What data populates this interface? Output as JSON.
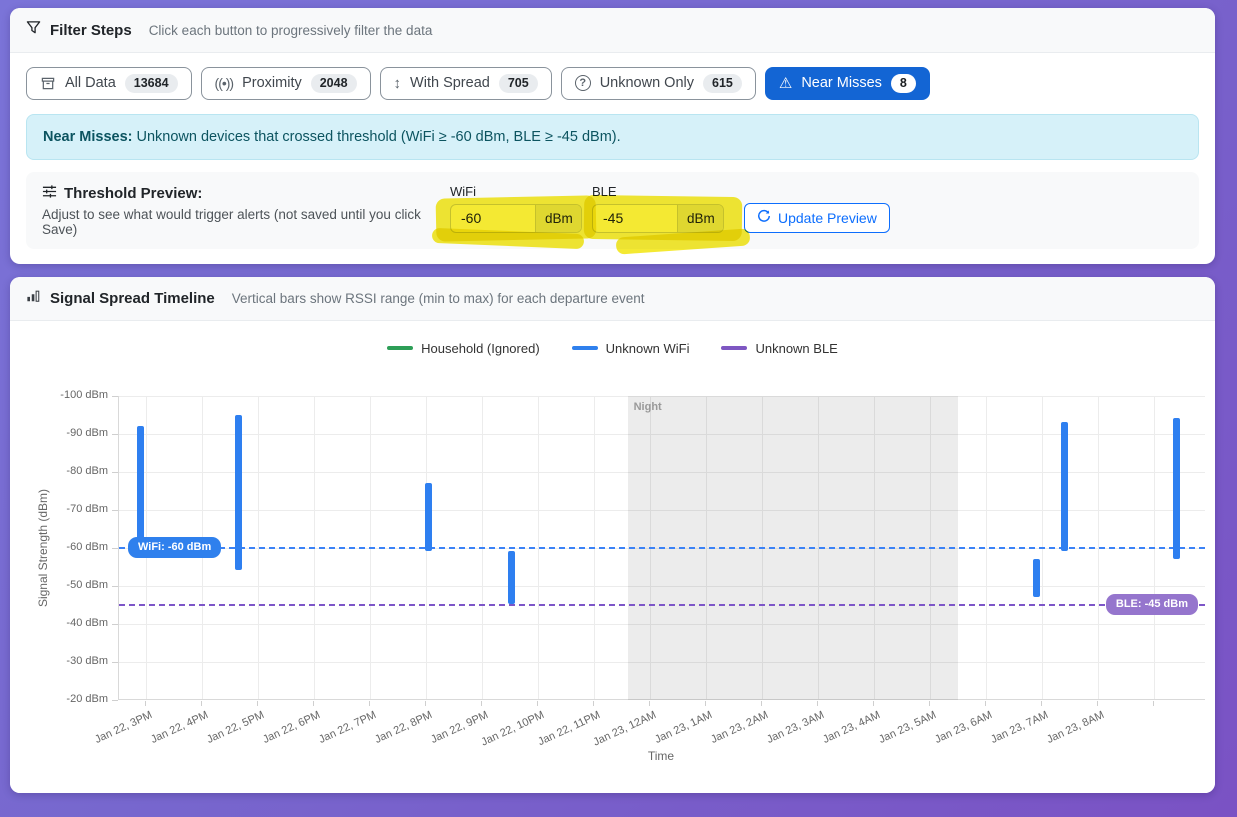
{
  "filter_panel": {
    "title": "Filter Steps",
    "subtitle": "Click each button to progressively filter the data",
    "buttons": [
      {
        "label": "All Data",
        "count": "13684",
        "icon": "archive-icon",
        "active": false
      },
      {
        "label": "Proximity",
        "count": "2048",
        "icon": "signal-icon",
        "active": false
      },
      {
        "label": "With Spread",
        "count": "705",
        "icon": "spread-icon",
        "active": false
      },
      {
        "label": "Unknown Only",
        "count": "615",
        "icon": "question-icon",
        "active": false
      },
      {
        "label": "Near Misses",
        "count": "8",
        "icon": "warning-icon",
        "active": true
      }
    ],
    "banner": {
      "bold": "Near Misses:",
      "text": " Unknown devices that crossed threshold (WiFi ≥ -60 dBm, BLE ≥ -45 dBm)."
    },
    "threshold": {
      "title": "Threshold Preview:",
      "description": "Adjust to see what would trigger alerts (not saved until you click Save)",
      "wifi_label": "WiFi",
      "wifi_value": "-60",
      "wifi_unit": "dBm",
      "ble_label": "BLE",
      "ble_value": "-45",
      "ble_unit": "dBm",
      "update_button": "Update Preview"
    }
  },
  "chart_panel": {
    "title": "Signal Spread Timeline",
    "subtitle": "Vertical bars show RSSI range (min to max) for each departure event"
  },
  "chart_data": {
    "type": "bar",
    "title": "Signal Spread Timeline",
    "xlabel": "Time",
    "ylabel": "Signal Strength (dBm)",
    "ylim": [
      -100,
      -20
    ],
    "y_inverted": true,
    "grid": true,
    "legend_position": "top",
    "y_ticks": [
      -100,
      -90,
      -80,
      -70,
      -60,
      -50,
      -40,
      -30,
      -20
    ],
    "y_tick_suffix": " dBm",
    "x_ticks": [
      "Jan 22, 3PM",
      "Jan 22, 4PM",
      "Jan 22, 5PM",
      "Jan 22, 6PM",
      "Jan 22, 7PM",
      "Jan 22, 8PM",
      "Jan 22, 9PM",
      "Jan 22, 10PM",
      "Jan 22, 11PM",
      "Jan 23, 12AM",
      "Jan 23, 1AM",
      "Jan 23, 2AM",
      "Jan 23, 3AM",
      "Jan 23, 4AM",
      "Jan 23, 5AM",
      "Jan 23, 6AM",
      "Jan 23, 7AM",
      "Jan 23, 8AM"
    ],
    "legend": [
      {
        "label": "Household (Ignored)",
        "color": "#2d9e57"
      },
      {
        "label": "Unknown WiFi",
        "color": "#2f80ed"
      },
      {
        "label": "Unknown BLE",
        "color": "#7e57c2"
      }
    ],
    "thresholds": [
      {
        "name": "WiFi",
        "label": "WiFi: -60 dBm",
        "value_dbm": -60,
        "line_color": "#3b82f6",
        "pill_color": "#2f80ed",
        "label_side": "left"
      },
      {
        "name": "BLE",
        "label": "BLE: -45 dBm",
        "value_dbm": -45,
        "line_color": "#7d56c8",
        "pill_color": "#9575cd",
        "label_side": "right"
      }
    ],
    "night_region": {
      "label": "Night",
      "t_start_hours": 8.6,
      "t_end_hours": 14.5
    },
    "bars": [
      {
        "series": "Unknown WiFi",
        "time_approx": "Jan 22, ~2:55PM",
        "t_hours": -0.1,
        "rssi_min": -92,
        "rssi_max": -61
      },
      {
        "series": "Unknown WiFi",
        "time_approx": "Jan 22, ~4:40PM",
        "t_hours": 1.66,
        "rssi_min": -95,
        "rssi_max": -54
      },
      {
        "series": "Unknown WiFi",
        "time_approx": "Jan 22, ~8:05PM",
        "t_hours": 5.05,
        "rssi_min": -77,
        "rssi_max": -59
      },
      {
        "series": "Unknown WiFi",
        "time_approx": "Jan 22, ~9:30PM",
        "t_hours": 6.52,
        "rssi_min": -59,
        "rssi_max": -45
      },
      {
        "series": "Unknown WiFi",
        "time_approx": "Jan 23, ~6:55AM",
        "t_hours": 15.9,
        "rssi_min": -57,
        "rssi_max": -47
      },
      {
        "series": "Unknown WiFi",
        "time_approx": "Jan 23, ~7:25AM",
        "t_hours": 16.4,
        "rssi_min": -93,
        "rssi_max": -59
      },
      {
        "series": "Unknown WiFi",
        "time_approx": "Jan 23, ~9:20AM",
        "t_hours": 18.4,
        "rssi_min": -94,
        "rssi_max": -57
      }
    ]
  }
}
